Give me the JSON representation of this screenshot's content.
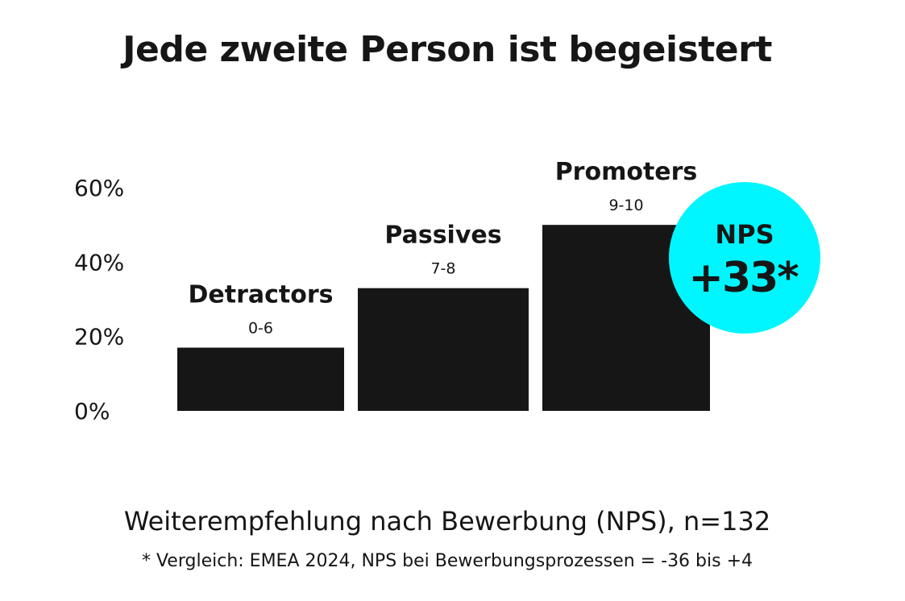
{
  "title": "Jede zweite Person ist begeistert",
  "subtitle": "Weiterempfehlung nach Bewerbung (NPS), n=132",
  "footnote": "* Vergleich: EMEA 2024, NPS bei Bewerbungsprozessen = -36 bis +4",
  "chart_data": {
    "type": "bar",
    "categories": [
      "Detractors",
      "Passives",
      "Promoters"
    ],
    "category_ranges": [
      "0-6",
      "7-8",
      "9-10"
    ],
    "values": [
      17,
      33,
      50
    ],
    "ylim": [
      0,
      60
    ],
    "yticks": [
      "0%",
      "20%",
      "40%",
      "60%"
    ],
    "grid": false,
    "bar_color": "#161616",
    "badge": {
      "label": "NPS",
      "value": "+33*",
      "color": "#00F6FF"
    }
  }
}
